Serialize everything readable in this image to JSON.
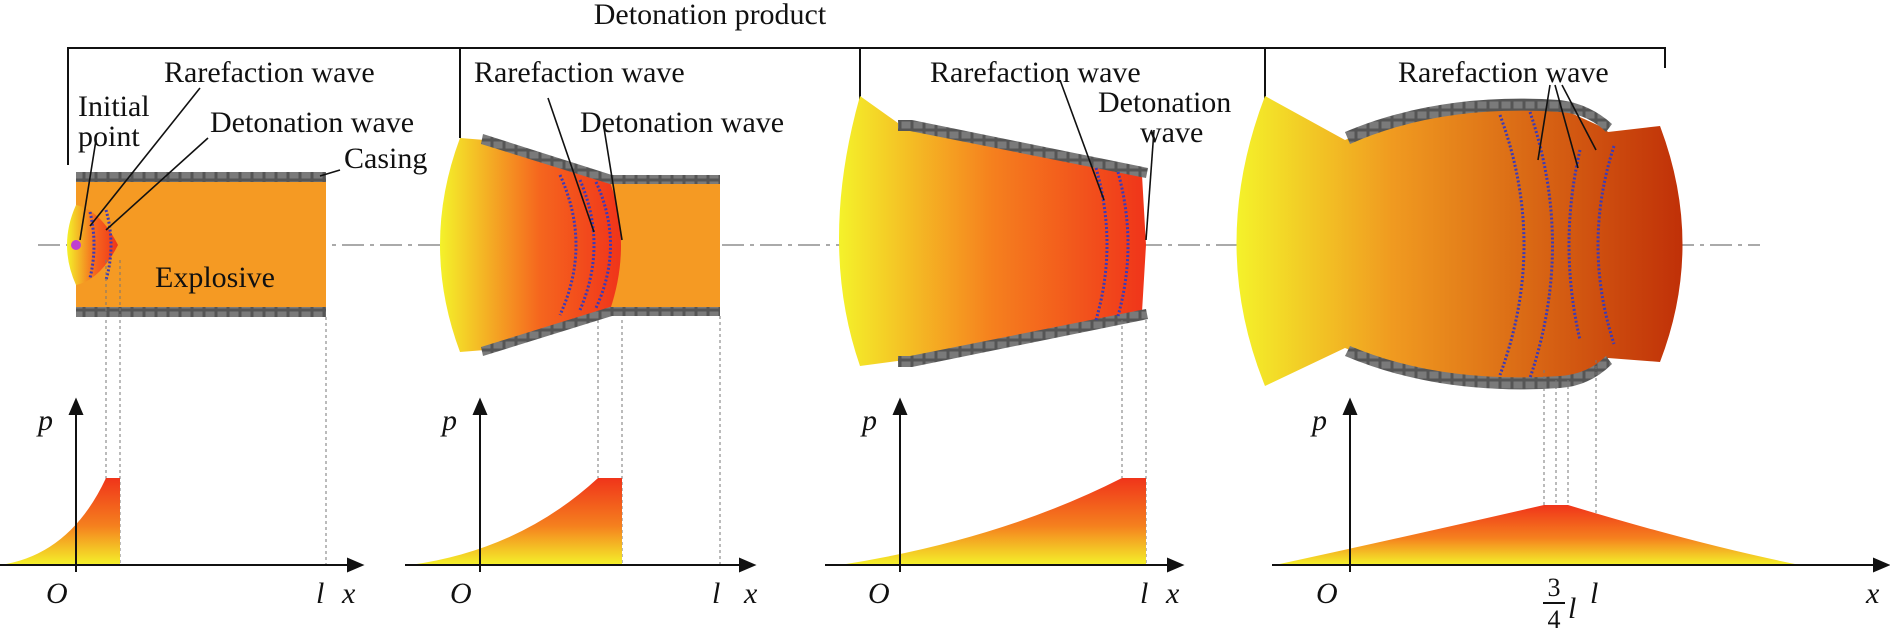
{
  "title": "Detonation product",
  "panels": [
    {
      "labels": {
        "rarefaction": "Rarefaction wave",
        "initial_point": [
          "Initial",
          "point"
        ],
        "detonation": "Detonation wave",
        "casing": "Casing",
        "explosive": "Explosive"
      },
      "axis": {
        "p": "p",
        "origin": "O",
        "l": "l",
        "x": "x"
      }
    },
    {
      "labels": {
        "rarefaction": "Rarefaction wave",
        "detonation": "Detonation wave"
      },
      "axis": {
        "p": "p",
        "origin": "O",
        "l": "l",
        "x": "x"
      }
    },
    {
      "labels": {
        "rarefaction": "Rarefaction wave",
        "detonation": [
          "Detonation",
          "wave"
        ]
      },
      "axis": {
        "p": "p",
        "origin": "O",
        "l": "l",
        "x": "x"
      }
    },
    {
      "labels": {
        "rarefaction": "Rarefaction wave"
      },
      "axis": {
        "p": "p",
        "origin": "O",
        "frac_num": "3",
        "frac_den": "4",
        "l_frac": "l",
        "l": "l",
        "x": "x"
      }
    }
  ],
  "colors": {
    "casing": "#555555",
    "explosive": "#f59a23",
    "product_low": "#f4f22a",
    "product_mid": "#f5421e",
    "product_high": "#c03008",
    "wave": "#3a3ab8",
    "initial_point": "#c040d0",
    "centerline": "#aaaaaa"
  }
}
